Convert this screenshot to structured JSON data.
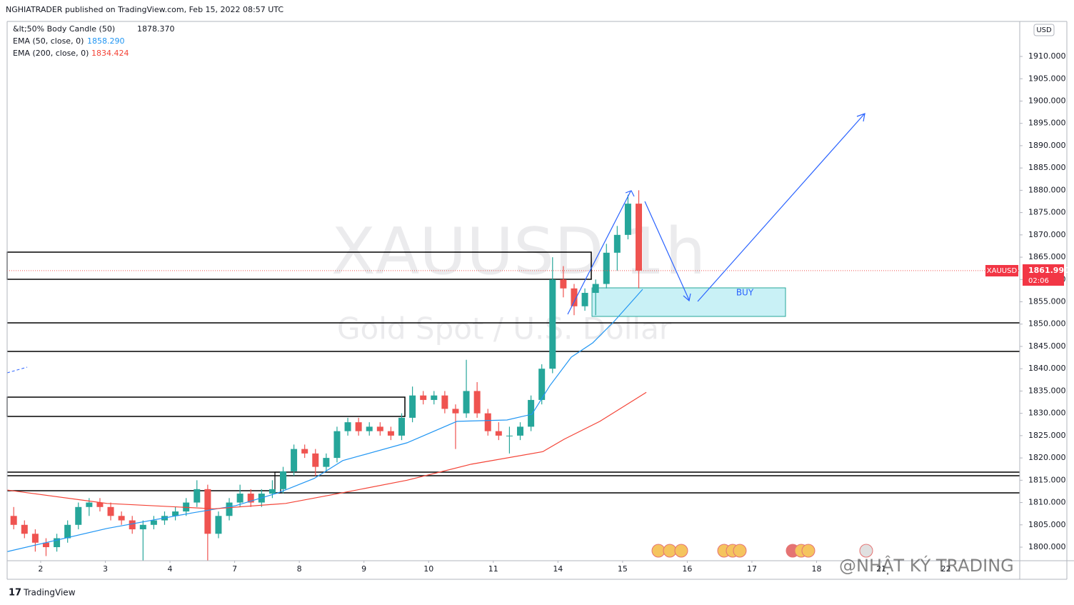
{
  "header": {
    "publisher": "NGHIATRADER published on TradingView.com, Feb 15, 2022 08:57 UTC",
    "legend": [
      {
        "label": "&lt;50% Body Candle (50)",
        "value": "1878.370"
      },
      {
        "label": "EMA (50, close, 0)",
        "value": "1858.290"
      },
      {
        "label": "EMA (200, close, 0)",
        "value": "1834.424"
      }
    ],
    "currency": "USD",
    "symbol_tag": "XAUUSD",
    "price_tag": "1861.990",
    "countdown": "02:06",
    "zone_label": "BUY",
    "footer": "TradingView",
    "watermark": "@NHẬT KÝ TRADING"
  },
  "chart_data": {
    "type": "candlestick",
    "title": "XAUUSD 1h",
    "subtitle": "Gold Spot / U.S. Dollar",
    "up_color": "#26a69a",
    "down_color": "#ef5350",
    "candles": [
      [
        1807,
        1809,
        1804,
        1805
      ],
      [
        1805,
        1806,
        1802,
        1803
      ],
      [
        1803,
        1804,
        1799,
        1801
      ],
      [
        1801,
        1802,
        1798,
        1800
      ],
      [
        1800,
        1803,
        1799,
        1802
      ],
      [
        1802,
        1806,
        1801,
        1805
      ],
      [
        1805,
        1810,
        1804,
        1809
      ],
      [
        1809,
        1811,
        1807,
        1810
      ],
      [
        1810,
        1811,
        1808,
        1809
      ],
      [
        1809,
        1810,
        1806,
        1807
      ],
      [
        1807,
        1808,
        1805,
        1806
      ],
      [
        1806,
        1807,
        1803,
        1804
      ],
      [
        1804,
        1806,
        1797,
        1805
      ],
      [
        1805,
        1807,
        1804,
        1806
      ],
      [
        1806,
        1808,
        1805,
        1807
      ],
      [
        1807,
        1809,
        1806,
        1808
      ],
      [
        1808,
        1811,
        1807,
        1810
      ],
      [
        1810,
        1815,
        1809,
        1813
      ],
      [
        1813,
        1814,
        1797,
        1803
      ],
      [
        1803,
        1808,
        1802,
        1807
      ],
      [
        1807,
        1811,
        1806,
        1810
      ],
      [
        1810,
        1814,
        1809,
        1812
      ],
      [
        1812,
        1813,
        1809,
        1810
      ],
      [
        1810,
        1813,
        1809,
        1812
      ],
      [
        1812,
        1815,
        1811,
        1813
      ],
      [
        1813,
        1818,
        1812,
        1817
      ],
      [
        1817,
        1823,
        1816,
        1822
      ],
      [
        1822,
        1823,
        1820,
        1821
      ],
      [
        1821,
        1822,
        1816,
        1818
      ],
      [
        1818,
        1821,
        1817,
        1820
      ],
      [
        1820,
        1827,
        1819,
        1826
      ],
      [
        1826,
        1829,
        1825,
        1828
      ],
      [
        1828,
        1829,
        1825,
        1826
      ],
      [
        1826,
        1828,
        1825,
        1827
      ],
      [
        1827,
        1828,
        1825,
        1826
      ],
      [
        1826,
        1827,
        1824,
        1825
      ],
      [
        1825,
        1830,
        1824,
        1829
      ],
      [
        1829,
        1836,
        1828,
        1834
      ],
      [
        1834,
        1835,
        1832,
        1833
      ],
      [
        1833,
        1835,
        1832,
        1834
      ],
      [
        1834,
        1835,
        1830,
        1831
      ],
      [
        1831,
        1832,
        1822,
        1830
      ],
      [
        1830,
        1842,
        1829,
        1835
      ],
      [
        1835,
        1837,
        1829,
        1830
      ],
      [
        1830,
        1831,
        1825,
        1826
      ],
      [
        1826,
        1828,
        1824,
        1825
      ],
      [
        1825,
        1827,
        1821,
        1825
      ],
      [
        1825,
        1828,
        1824,
        1827
      ],
      [
        1827,
        1834,
        1826,
        1833
      ],
      [
        1833,
        1841,
        1832,
        1840
      ],
      [
        1840,
        1865,
        1839,
        1860
      ],
      [
        1860,
        1863,
        1856,
        1858
      ],
      [
        1858,
        1859,
        1852,
        1854
      ],
      [
        1854,
        1858,
        1853,
        1857
      ],
      [
        1857,
        1860,
        1852,
        1859
      ],
      [
        1859,
        1868,
        1858,
        1866
      ],
      [
        1866,
        1872,
        1862,
        1870
      ],
      [
        1870,
        1879,
        1869,
        1877
      ],
      [
        1877,
        1880,
        1858,
        1861.99
      ]
    ],
    "series": [
      {
        "name": "EMA (50, close, 0)",
        "color": "#2196f3",
        "x": [
          -0.1,
          9.16,
          17.12,
          21.09,
          25.07,
          28.38,
          31.03,
          37.0,
          41.63,
          46.27,
          48.59,
          50.25,
          52.24,
          54.23,
          56.21,
          58.86
        ],
        "values": [
          1799.0,
          1804.2,
          1807.7,
          1809.3,
          1812.2,
          1815.4,
          1819.4,
          1823.4,
          1828.2,
          1828.5,
          1829.8,
          1836.2,
          1842.6,
          1845.8,
          1850.6,
          1857.8
        ]
      },
      {
        "name": "EMA (200, close, 0)",
        "color": "#f44336",
        "x": [
          -0.1,
          9.16,
          19.1,
          25.73,
          31.03,
          37.0,
          42.96,
          49.59,
          51.58,
          54.89,
          59.2
        ],
        "values": [
          1812.8,
          1809.8,
          1808.6,
          1809.8,
          1812.2,
          1815.0,
          1818.6,
          1821.4,
          1824.2,
          1828.2,
          1834.7
        ]
      }
    ],
    "xlim": [
      -0.11,
      93.85
    ],
    "xticks": [
      {
        "value": 3,
        "label": "2"
      },
      {
        "value": 9,
        "label": "3"
      },
      {
        "value": 15,
        "label": "4"
      },
      {
        "value": 21,
        "label": "7"
      },
      {
        "value": 27,
        "label": "8"
      },
      {
        "value": 33,
        "label": "9"
      },
      {
        "value": 39,
        "label": "10"
      },
      {
        "value": 45,
        "label": "11"
      },
      {
        "value": 51,
        "label": "14"
      },
      {
        "value": 57,
        "label": "15"
      },
      {
        "value": 63,
        "label": "16"
      },
      {
        "value": 69,
        "label": "17"
      },
      {
        "value": 75,
        "label": "18"
      },
      {
        "value": 81,
        "label": "21"
      },
      {
        "value": 87,
        "label": "22"
      }
    ],
    "ylim": [
      1796.96,
      1917.85
    ],
    "yticks": [
      {
        "value": 1800,
        "label": "1800.000"
      },
      {
        "value": 1805,
        "label": "1805.000"
      },
      {
        "value": 1810,
        "label": "1810.000"
      },
      {
        "value": 1815,
        "label": "1815.000"
      },
      {
        "value": 1820,
        "label": "1820.000"
      },
      {
        "value": 1825,
        "label": "1825.000"
      },
      {
        "value": 1830,
        "label": "1830.000"
      },
      {
        "value": 1835,
        "label": "1835.000"
      },
      {
        "value": 1840,
        "label": "1840.000"
      },
      {
        "value": 1845,
        "label": "1845.000"
      },
      {
        "value": 1850,
        "label": "1850.000"
      },
      {
        "value": 1855,
        "label": "1855.000"
      },
      {
        "value": 1860,
        "label": "1860.000"
      },
      {
        "value": 1865,
        "label": "1865.000"
      },
      {
        "value": 1870,
        "label": "1870.000"
      },
      {
        "value": 1875,
        "label": "1875.000"
      },
      {
        "value": 1880,
        "label": "1880.000"
      },
      {
        "value": 1885,
        "label": "1885.000"
      },
      {
        "value": 1890,
        "label": "1890.000"
      },
      {
        "value": 1895,
        "label": "1895.000"
      },
      {
        "value": 1900,
        "label": "1900.000"
      },
      {
        "value": 1905,
        "label": "1905.000"
      },
      {
        "value": 1910,
        "label": "1910.000"
      }
    ],
    "last_price": 1861.99
  }
}
